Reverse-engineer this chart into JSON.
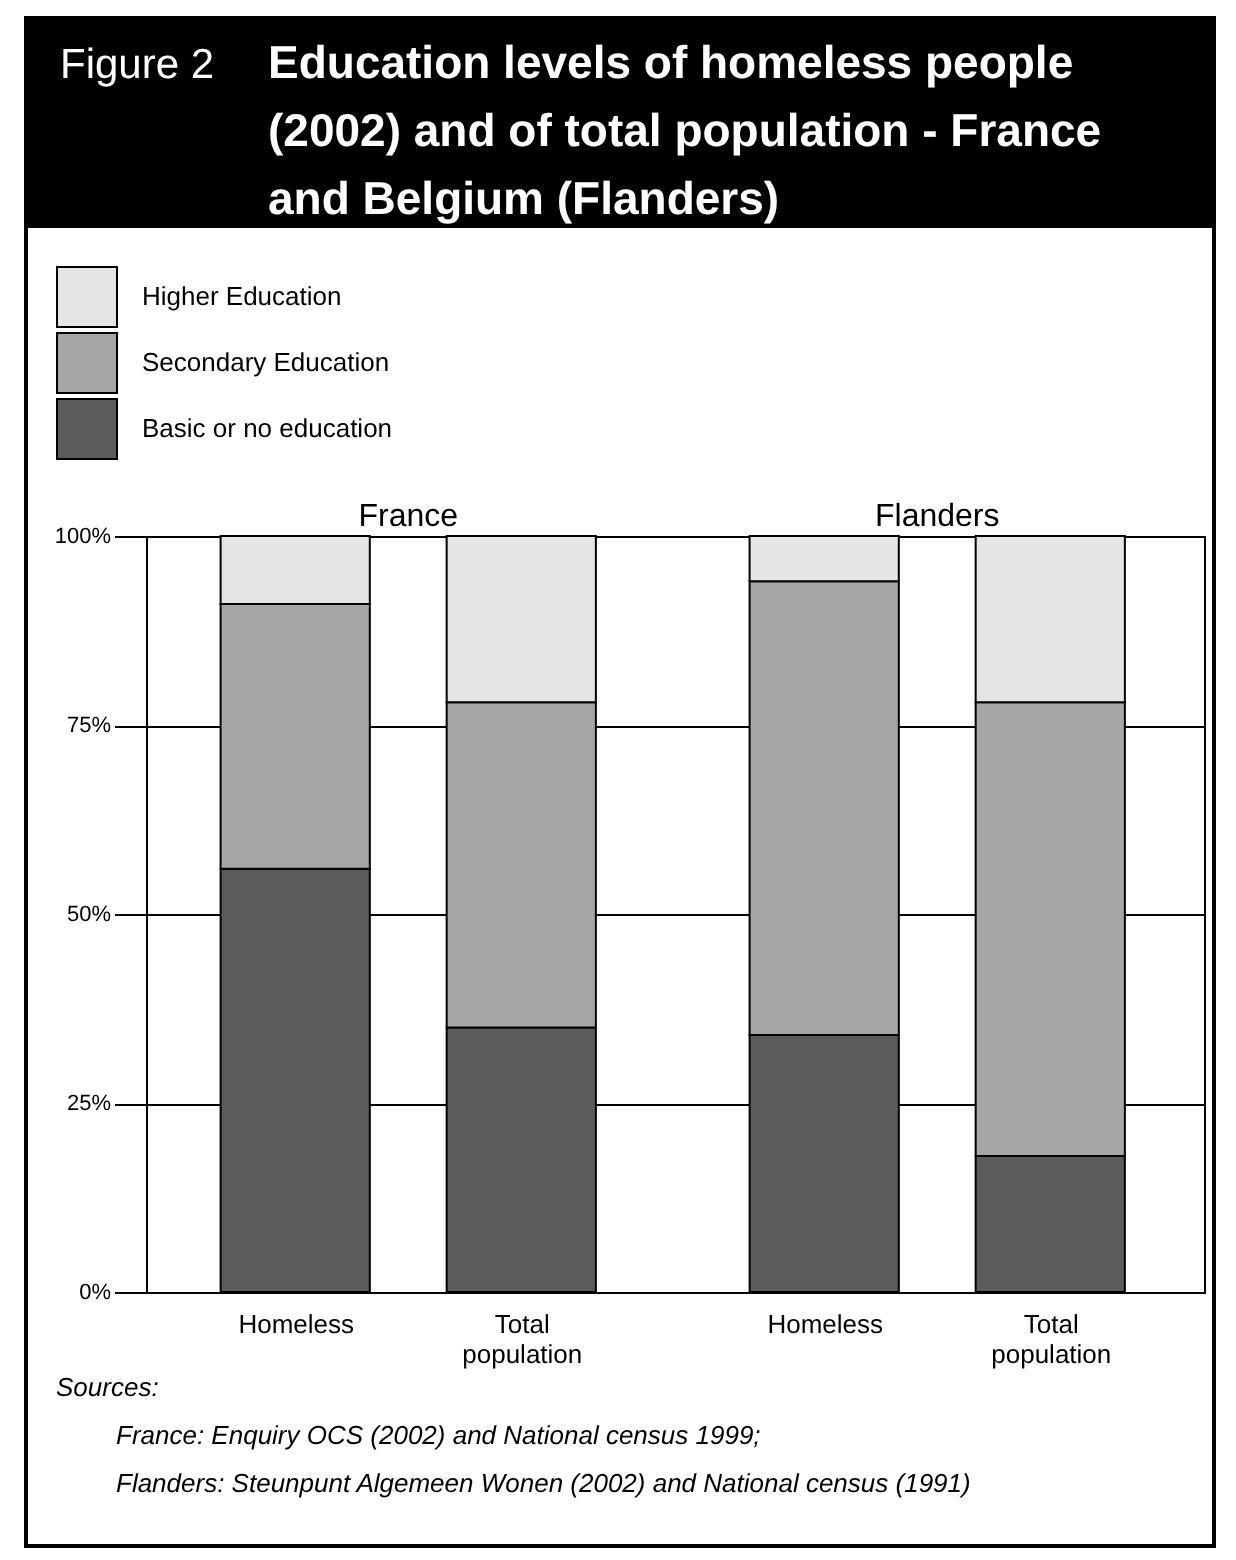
{
  "chart_data": {
    "type": "bar",
    "title": "Figure 2",
    "subtitle": "Education levels of homeless people (2002) and of total population - France and Belgium (Flanders)",
    "categories": [
      "Homeless",
      "Total population",
      "Homeless",
      "Total population"
    ],
    "series": [
      {
        "name": "Basic or no education",
        "color": "#5b5b5b",
        "values": [
          56,
          35,
          34,
          18
        ]
      },
      {
        "name": "Secondary Education",
        "color": "#a6a6a6",
        "values": [
          35,
          43,
          60,
          60
        ]
      },
      {
        "name": "Higher Education",
        "color": "#e5e5e5",
        "values": [
          9,
          22,
          6,
          22
        ]
      }
    ],
    "stacked": true,
    "ylim": [
      0,
      100
    ],
    "yticks": [
      {
        "value": 0,
        "label": "0%"
      },
      {
        "value": 25,
        "label": "25%"
      },
      {
        "value": 50,
        "label": "50%"
      },
      {
        "value": 75,
        "label": "75%"
      },
      {
        "value": 100,
        "label": "100%"
      }
    ],
    "grid": "y",
    "legend": "top left",
    "annotations": [
      "France",
      "Flanders",
      "Sources:",
      "France: Enquiry OCS (2002) and National census 1999;",
      "Flanders: Steunpunt Algemeen Wonen (2002) and National census (1991)"
    ]
  }
}
